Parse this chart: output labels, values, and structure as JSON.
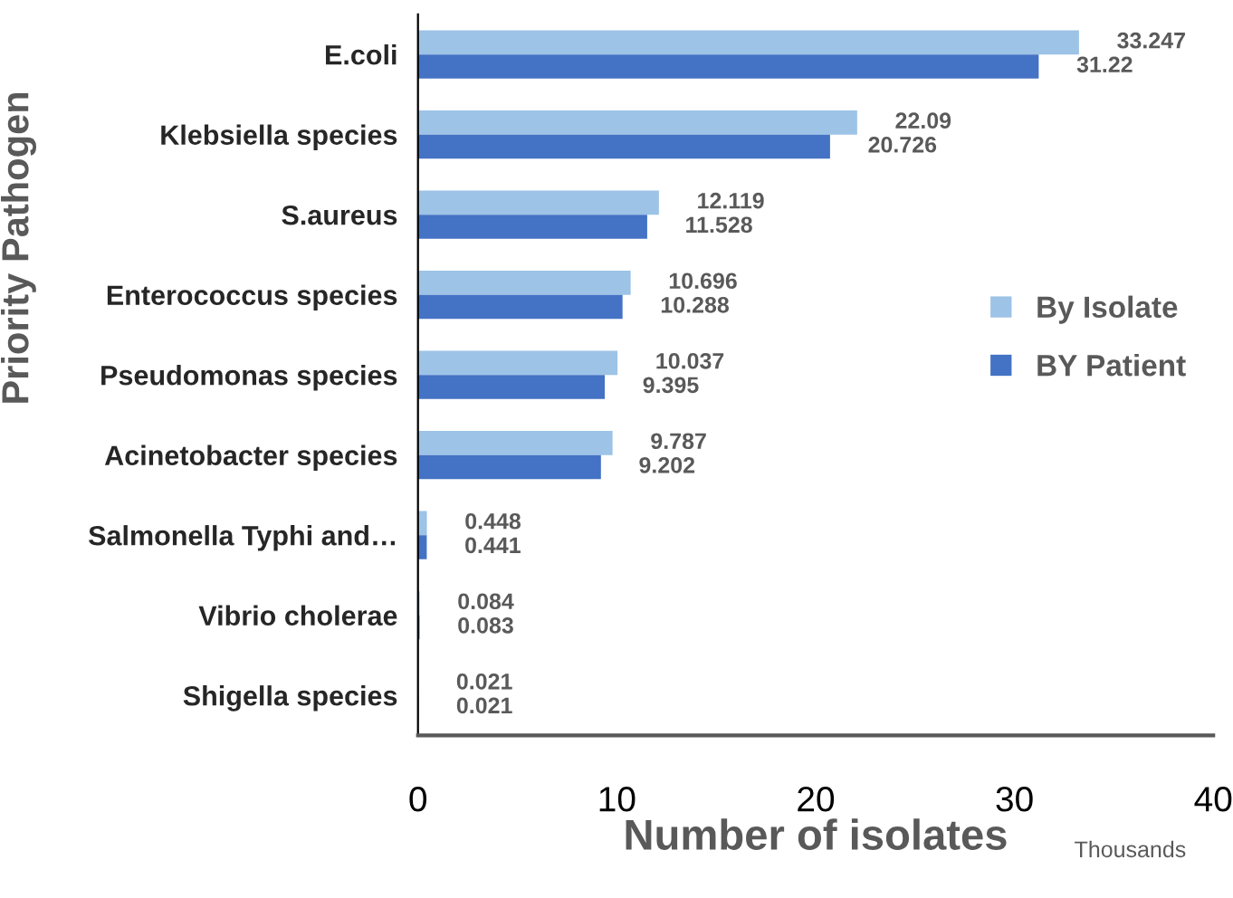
{
  "chart_data": {
    "type": "bar",
    "orientation": "horizontal",
    "xlabel": "Number of isolates",
    "ylabel": "Priority Pathogen",
    "annotations": [
      "Thousands"
    ],
    "categories": [
      "E.coli",
      "Klebsiella species",
      "S.aureus",
      "Enterococcus species",
      "Pseudomonas species",
      "Acinetobacter species",
      "Salmonella Typhi and…",
      "Vibrio cholerae",
      "Shigella species"
    ],
    "series": [
      {
        "name": "By Isolate",
        "color": "#9dc3e6",
        "values": [
          33.247,
          22.09,
          12.119,
          10.696,
          10.037,
          9.787,
          0.448,
          0.084,
          0.021
        ]
      },
      {
        "name": "BY Patient",
        "color": "#4472c4",
        "values": [
          31.22,
          20.726,
          11.528,
          10.288,
          9.395,
          9.202,
          0.441,
          0.083,
          0.021
        ]
      }
    ],
    "xlim": [
      0,
      40
    ],
    "xticks": [
      0,
      10,
      20,
      30,
      40
    ],
    "data_labels": true,
    "legend": "right",
    "grid": false
  }
}
